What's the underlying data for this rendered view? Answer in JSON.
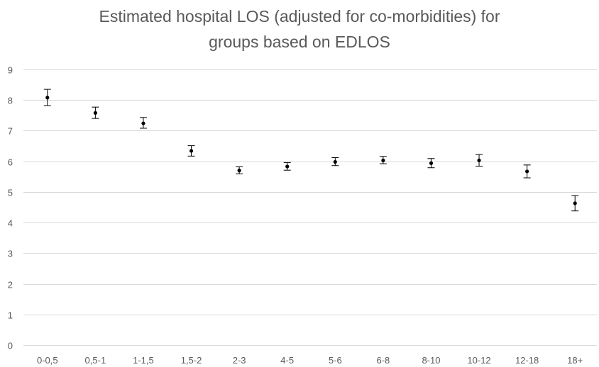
{
  "chart_data": {
    "type": "scatter",
    "title_lines": [
      "Estimated hospital LOS (adjusted for co-morbidities) for",
      "groups based on EDLOS"
    ],
    "categories": [
      "0-0,5",
      "0,5-1",
      "1-1,5",
      "1,5-2",
      "2-3",
      "4-5",
      "5-6",
      "6-8",
      "8-10",
      "10-12",
      "12-18",
      "18+"
    ],
    "series": [
      {
        "values": [
          8.08,
          7.58,
          7.24,
          6.34,
          5.7,
          5.83,
          5.98,
          6.03,
          5.94,
          6.03,
          5.67,
          4.63
        ],
        "error_lower": [
          7.82,
          7.4,
          7.08,
          6.17,
          5.59,
          5.71,
          5.86,
          5.92,
          5.79,
          5.84,
          5.46,
          4.38
        ],
        "error_upper": [
          8.35,
          7.77,
          7.43,
          6.51,
          5.82,
          5.96,
          6.12,
          6.16,
          6.09,
          6.22,
          5.88,
          4.88
        ]
      }
    ],
    "y_ticks": [
      0,
      1,
      2,
      3,
      4,
      5,
      6,
      7,
      8,
      9
    ],
    "ylim": [
      0,
      9
    ],
    "grid": true,
    "legend": "none",
    "colors": {
      "point": "#000000",
      "error_bar": "#000000",
      "grid": "#d9d9d9",
      "text": "#595959"
    }
  }
}
